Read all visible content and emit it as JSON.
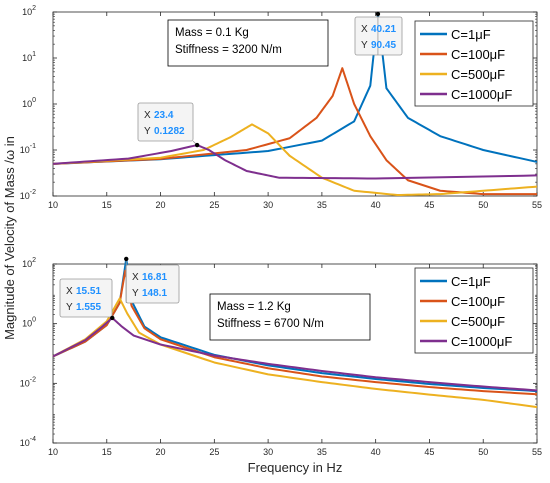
{
  "figure": {
    "ylabel": "Magnitude of Velocity of Mass /ω in",
    "xlabel": "Frequency in Hz"
  },
  "chart_data": [
    {
      "type": "line",
      "xlim": [
        10,
        55
      ],
      "ylim_exp": [
        -2,
        2
      ],
      "y_scale": "log",
      "x_ticks": [
        "10",
        "15",
        "20",
        "25",
        "30",
        "35",
        "40",
        "45",
        "50",
        "55"
      ],
      "y_ticks": [
        {
          "base": "10",
          "exp": "2"
        },
        {
          "base": "10",
          "exp": "1"
        },
        {
          "base": "10",
          "exp": "0"
        },
        {
          "base": "10",
          "exp": "-1"
        },
        {
          "base": "10",
          "exp": "-2"
        }
      ],
      "annotation": [
        "Mass = 0.1 Kg",
        "Stiffness = 3200 N/m"
      ],
      "legend_position": "top-right",
      "legend": [
        "C=1μF",
        "C=100μF",
        "C=500μF",
        "C=1000μF"
      ],
      "colors": [
        "#0072bd",
        "#d95319",
        "#edb120",
        "#7e2f8e"
      ],
      "series": [
        {
          "name": "C=1μF",
          "points": [
            [
              10,
              0.05
            ],
            [
              20,
              0.063
            ],
            [
              30,
              0.095
            ],
            [
              35,
              0.16
            ],
            [
              38,
              0.42
            ],
            [
              39.5,
              2.5
            ],
            [
              40.21,
              90.45
            ],
            [
              41,
              2.2
            ],
            [
              43,
              0.5
            ],
            [
              46,
              0.2
            ],
            [
              50,
              0.1
            ],
            [
              55,
              0.055
            ]
          ]
        },
        {
          "name": "C=100μF",
          "points": [
            [
              10,
              0.05
            ],
            [
              20,
              0.064
            ],
            [
              28,
              0.1
            ],
            [
              32,
              0.18
            ],
            [
              34.5,
              0.5
            ],
            [
              36,
              1.5
            ],
            [
              36.9,
              6
            ],
            [
              38,
              1.0
            ],
            [
              39.5,
              0.2
            ],
            [
              41,
              0.06
            ],
            [
              43,
              0.022
            ],
            [
              46,
              0.013
            ],
            [
              50,
              0.011
            ],
            [
              55,
              0.011
            ]
          ]
        },
        {
          "name": "C=500μF",
          "points": [
            [
              10,
              0.05
            ],
            [
              20,
              0.068
            ],
            [
              24,
              0.1
            ],
            [
              26.5,
              0.19
            ],
            [
              28.5,
              0.36
            ],
            [
              30,
              0.23
            ],
            [
              32,
              0.075
            ],
            [
              35,
              0.025
            ],
            [
              38,
              0.013
            ],
            [
              42,
              0.0105
            ],
            [
              46,
              0.011
            ],
            [
              50,
              0.013
            ],
            [
              55,
              0.016
            ]
          ]
        },
        {
          "name": "C=1000μF",
          "points": [
            [
              10,
              0.05
            ],
            [
              17,
              0.065
            ],
            [
              21,
              0.095
            ],
            [
              23.4,
              0.1282
            ],
            [
              24.5,
              0.1
            ],
            [
              26,
              0.06
            ],
            [
              28,
              0.035
            ],
            [
              31,
              0.025
            ],
            [
              40,
              0.024
            ],
            [
              55,
              0.028
            ]
          ]
        }
      ],
      "datatips": [
        {
          "x_label": "X",
          "x_value": "40.21",
          "y_label": "Y",
          "y_value": "90.45",
          "x": 40.21,
          "y": 90.45
        },
        {
          "x_label": "X",
          "x_value": "23.4",
          "y_label": "Y",
          "y_value": "0.1282",
          "x": 23.4,
          "y": 0.1282
        }
      ]
    },
    {
      "type": "line",
      "xlim": [
        10,
        55
      ],
      "ylim_exp": [
        -4,
        2
      ],
      "y_scale": "log",
      "x_ticks": [
        "10",
        "15",
        "20",
        "25",
        "30",
        "35",
        "40",
        "45",
        "50",
        "55"
      ],
      "y_ticks": [
        {
          "base": "10",
          "exp": "2"
        },
        {
          "base": "10",
          "exp": "0"
        },
        {
          "base": "10",
          "exp": "-2"
        },
        {
          "base": "10",
          "exp": "-4"
        }
      ],
      "annotation": [
        "Mass = 1.2 Kg",
        "Stiffness = 6700 N/m"
      ],
      "legend_position": "top-right",
      "legend": [
        "C=1μF",
        "C=100μF",
        "C=500μF",
        "C=1000μF"
      ],
      "colors": [
        "#0072bd",
        "#d95319",
        "#edb120",
        "#7e2f8e"
      ],
      "series": [
        {
          "name": "C=1μF",
          "points": [
            [
              10,
              0.08
            ],
            [
              13,
              0.25
            ],
            [
              15,
              0.9
            ],
            [
              16.2,
              5
            ],
            [
              16.81,
              148.1
            ],
            [
              17.4,
              5
            ],
            [
              18.5,
              0.8
            ],
            [
              20,
              0.35
            ],
            [
              25,
              0.09
            ],
            [
              30,
              0.04
            ],
            [
              35,
              0.022
            ],
            [
              40,
              0.014
            ],
            [
              45,
              0.0095
            ],
            [
              50,
              0.007
            ],
            [
              55,
              0.0055
            ]
          ]
        },
        {
          "name": "C=100μF",
          "points": [
            [
              10,
              0.08
            ],
            [
              13,
              0.25
            ],
            [
              15,
              0.9
            ],
            [
              16.2,
              5
            ],
            [
              16.72,
              60
            ],
            [
              17.3,
              4
            ],
            [
              18.5,
              0.7
            ],
            [
              20,
              0.3
            ],
            [
              25,
              0.075
            ],
            [
              30,
              0.032
            ],
            [
              35,
              0.017
            ],
            [
              40,
              0.011
            ],
            [
              45,
              0.0075
            ],
            [
              50,
              0.0055
            ],
            [
              55,
              0.0043
            ]
          ]
        },
        {
          "name": "C=500μF",
          "points": [
            [
              10,
              0.08
            ],
            [
              13,
              0.3
            ],
            [
              15,
              1.2
            ],
            [
              16.2,
              7
            ],
            [
              16.9,
              2.2
            ],
            [
              18,
              0.5
            ],
            [
              20,
              0.2
            ],
            [
              25,
              0.05
            ],
            [
              30,
              0.02
            ],
            [
              35,
              0.011
            ],
            [
              40,
              0.0065
            ],
            [
              45,
              0.0042
            ],
            [
              50,
              0.0028
            ],
            [
              55,
              0.0016
            ]
          ]
        },
        {
          "name": "C=1000μF",
          "points": [
            [
              10,
              0.08
            ],
            [
              13,
              0.28
            ],
            [
              14.5,
              0.75
            ],
            [
              15.51,
              1.555
            ],
            [
              16.4,
              0.8
            ],
            [
              17.5,
              0.4
            ],
            [
              20,
              0.2
            ],
            [
              25,
              0.085
            ],
            [
              30,
              0.045
            ],
            [
              35,
              0.026
            ],
            [
              40,
              0.016
            ],
            [
              45,
              0.011
            ],
            [
              50,
              0.0078
            ],
            [
              55,
              0.0058
            ]
          ]
        }
      ],
      "datatips": [
        {
          "x_label": "X",
          "x_value": "15.51",
          "y_label": "Y",
          "y_value": "1.555",
          "x": 15.51,
          "y": 1.555
        },
        {
          "x_label": "X",
          "x_value": "16.81",
          "y_label": "Y",
          "y_value": "148.1",
          "x": 16.81,
          "y": 148.1
        }
      ]
    }
  ]
}
